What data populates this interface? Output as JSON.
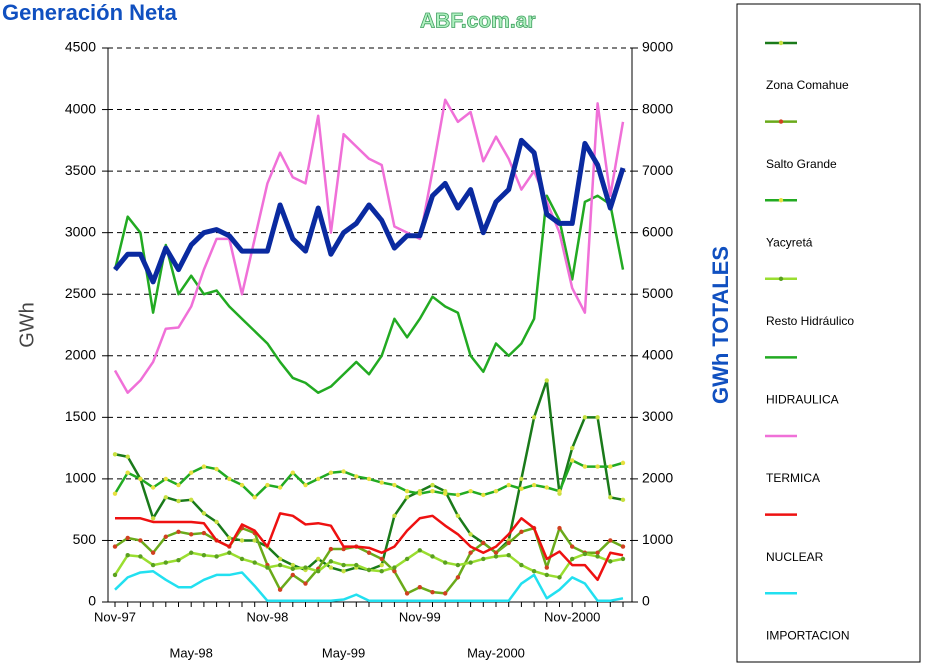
{
  "chart_data": {
    "type": "line",
    "title": "Generación Neta",
    "watermark": "ABF.com.ar",
    "y_label": "GWh",
    "y2_label": "GWh TOTALES",
    "categories": [
      "Nov-97",
      null,
      null,
      null,
      null,
      null,
      "May-98",
      null,
      null,
      null,
      null,
      null,
      "Nov-98",
      null,
      null,
      null,
      null,
      null,
      "May-99",
      null,
      null,
      null,
      null,
      null,
      "Nov-99",
      null,
      null,
      null,
      null,
      null,
      "May-2000",
      null,
      null,
      null,
      null,
      null,
      "Nov-2000",
      null,
      null,
      null,
      null
    ],
    "ylim": [
      0,
      4500
    ],
    "yticks": [
      0,
      500,
      1000,
      1500,
      2000,
      2500,
      3000,
      3500,
      4000,
      4500
    ],
    "y2lim": [
      0,
      9000
    ],
    "y2ticks": [
      0,
      1000,
      2000,
      3000,
      4000,
      5000,
      6000,
      7000,
      8000,
      9000
    ],
    "grid": true,
    "series": [
      {
        "name": "Zona Comahue",
        "color": "#1a7a1a",
        "marker_color": "#c8e040",
        "values": [
          1200,
          1180,
          1000,
          680,
          850,
          820,
          830,
          720,
          650,
          520,
          500,
          500,
          450,
          350,
          300,
          260,
          350,
          280,
          250,
          280,
          260,
          300,
          700,
          850,
          900,
          950,
          900,
          700,
          550,
          480,
          400,
          500,
          1000,
          1500,
          1800,
          880,
          1250,
          1500,
          1500,
          850,
          830
        ]
      },
      {
        "name": "Salto Grande",
        "color": "#6aaa1a",
        "marker_color": "#d04020",
        "values": [
          450,
          520,
          500,
          400,
          530,
          570,
          550,
          560,
          500,
          450,
          600,
          560,
          300,
          100,
          220,
          150,
          270,
          430,
          430,
          450,
          400,
          350,
          250,
          70,
          120,
          80,
          70,
          200,
          400,
          480,
          400,
          480,
          570,
          600,
          280,
          600,
          450,
          400,
          400,
          500,
          450
        ]
      },
      {
        "name": "Yacyretá",
        "color": "#22aa22",
        "marker_color": "#e8e040",
        "values": [
          880,
          1050,
          1000,
          930,
          1000,
          950,
          1050,
          1100,
          1080,
          1000,
          950,
          850,
          950,
          930,
          1050,
          950,
          1000,
          1050,
          1060,
          1020,
          1000,
          970,
          950,
          900,
          880,
          900,
          880,
          870,
          900,
          870,
          900,
          950,
          920,
          950,
          930,
          900,
          1150,
          1100,
          1100,
          1100,
          1130
        ]
      },
      {
        "name": "Resto Hidráulico",
        "color": "#9ade30",
        "marker_color": "#5aa020",
        "values": [
          220,
          380,
          370,
          300,
          320,
          340,
          400,
          380,
          370,
          400,
          350,
          320,
          280,
          300,
          270,
          280,
          250,
          330,
          300,
          300,
          260,
          250,
          280,
          350,
          420,
          370,
          320,
          300,
          320,
          350,
          370,
          380,
          300,
          250,
          220,
          200,
          350,
          390,
          370,
          330,
          350
        ]
      },
      {
        "name": "HIDRAULICA",
        "color": "#22aa22",
        "values": [
          2700,
          3130,
          3000,
          2350,
          2900,
          2500,
          2650,
          2500,
          2530,
          2400,
          2300,
          2200,
          2100,
          1950,
          1820,
          1780,
          1700,
          1750,
          1850,
          1950,
          1850,
          2000,
          2300,
          2150,
          2300,
          2480,
          2400,
          2350,
          2000,
          1870,
          2100,
          2000,
          2100,
          2300,
          3300,
          3100,
          2620,
          3250,
          3300,
          3230,
          2700
        ]
      },
      {
        "name": "TERMICA",
        "color": "#f070d8",
        "values": [
          1880,
          1700,
          1800,
          1950,
          2220,
          2230,
          2400,
          2700,
          2950,
          2950,
          2500,
          2950,
          3400,
          3650,
          3450,
          3400,
          3950,
          3000,
          3800,
          3700,
          3600,
          3550,
          3050,
          3000,
          2950,
          3500,
          4080,
          3900,
          3980,
          3580,
          3780,
          3600,
          3350,
          3500,
          3250,
          3000,
          2550,
          2350,
          4050,
          3300,
          3900
        ]
      },
      {
        "name": "NUCLEAR",
        "color": "#ee1111",
        "values": [
          680,
          680,
          680,
          650,
          650,
          650,
          650,
          640,
          500,
          450,
          630,
          580,
          450,
          720,
          700,
          630,
          640,
          620,
          450,
          450,
          440,
          400,
          450,
          580,
          680,
          700,
          620,
          550,
          450,
          400,
          450,
          550,
          680,
          600,
          350,
          410,
          300,
          300,
          180,
          400,
          380
        ]
      },
      {
        "name": "IMPORTACION",
        "color": "#22e0f0",
        "values": [
          100,
          200,
          240,
          250,
          180,
          120,
          120,
          180,
          220,
          220,
          240,
          130,
          10,
          10,
          10,
          10,
          10,
          10,
          20,
          60,
          10,
          10,
          10,
          10,
          10,
          10,
          10,
          10,
          10,
          10,
          10,
          10,
          150,
          220,
          30,
          100,
          200,
          150,
          10,
          10,
          30
        ]
      },
      {
        "color": "#0a2aa0",
        "axis": "y2",
        "values": [
          5400,
          5650,
          5650,
          5200,
          5750,
          5400,
          5800,
          6000,
          6050,
          5950,
          5700,
          5700,
          5700,
          6450,
          5900,
          5700,
          6400,
          5650,
          6000,
          6150,
          6450,
          6200,
          5750,
          5950,
          5950,
          6600,
          6800,
          6400,
          6700,
          6000,
          6500,
          6700,
          7500,
          7300,
          6300,
          6150,
          6150,
          7450,
          7100,
          6400,
          7050
        ]
      }
    ]
  }
}
